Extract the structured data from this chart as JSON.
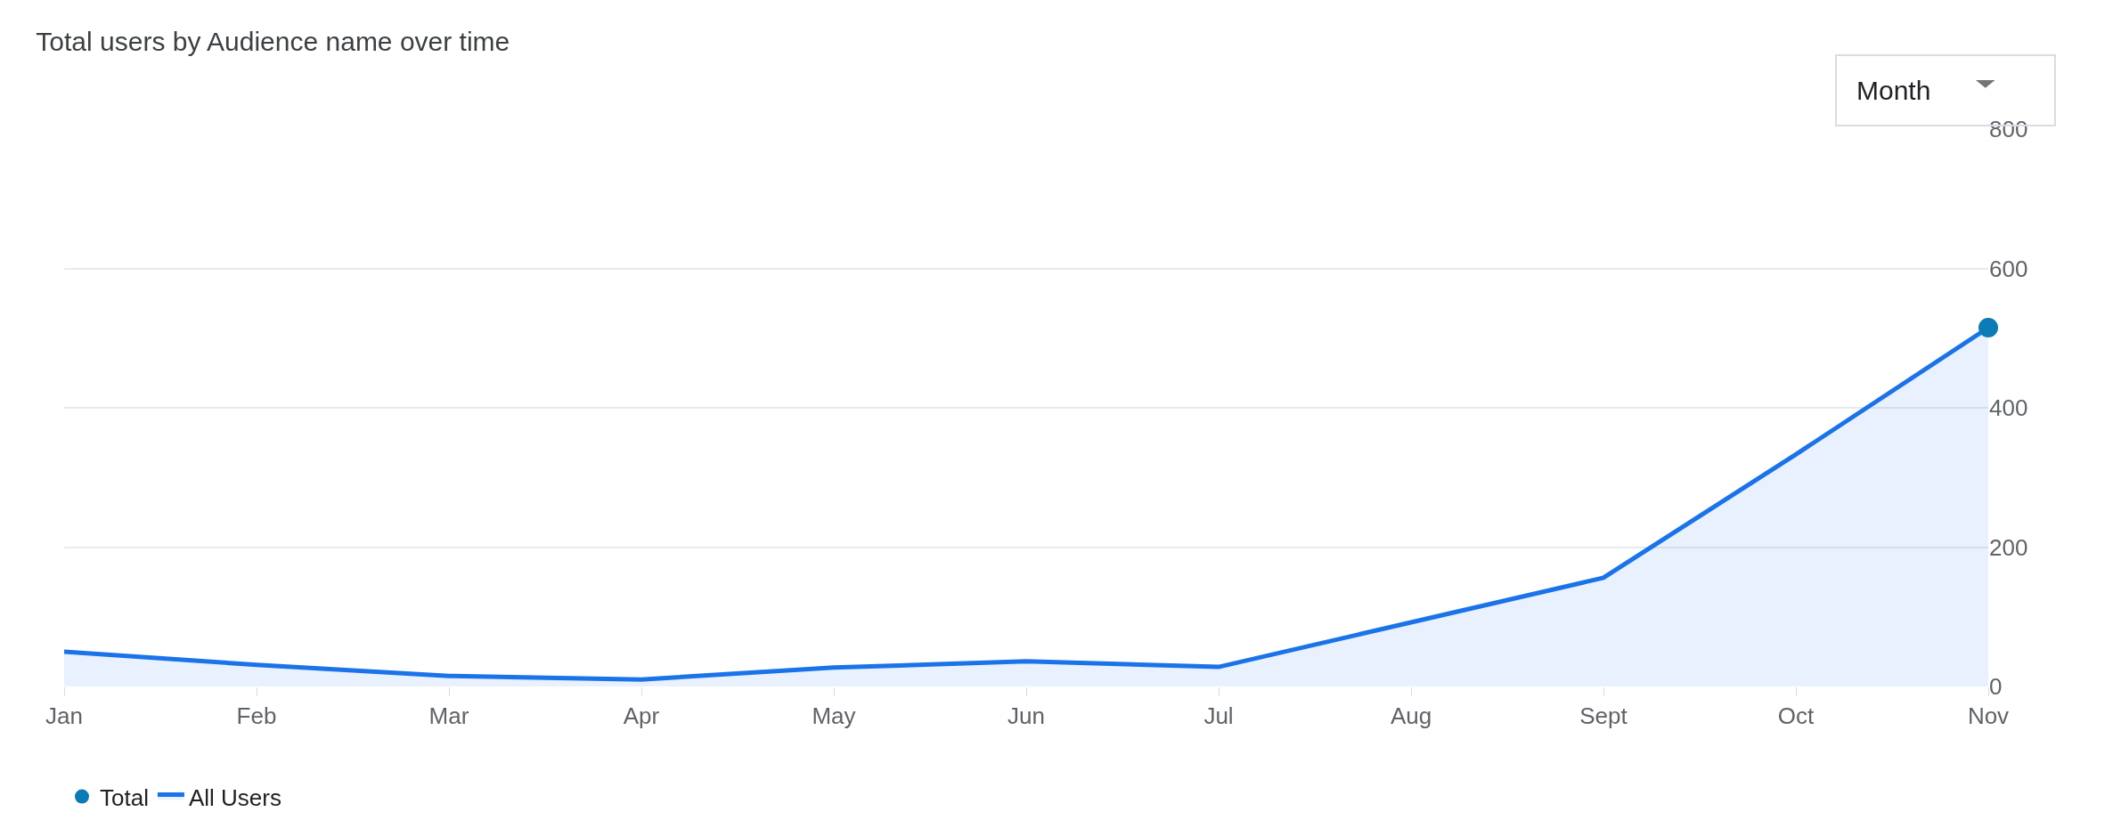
{
  "chart_data": {
    "type": "area",
    "title": "Total users by Audience name over time",
    "categories": [
      "Jan",
      "Feb",
      "Mar",
      "Apr",
      "May",
      "Jun",
      "Jul",
      "Aug",
      "Sept",
      "Oct",
      "Nov"
    ],
    "series": [
      {
        "name": "Total",
        "type": "scatter",
        "color": "#0b7bb5",
        "marker": "circle",
        "values": [
          null,
          null,
          null,
          null,
          null,
          null,
          null,
          null,
          null,
          null,
          515
        ]
      },
      {
        "name": "All Users",
        "color": "#1a73e8",
        "line_style": "solid",
        "values": [
          50,
          31,
          15,
          10,
          27,
          36,
          28,
          92,
          156,
          333,
          515
        ]
      }
    ],
    "ylim": [
      0,
      800
    ],
    "yticks": [
      0,
      200,
      400,
      600,
      800
    ],
    "grid": "y",
    "legend": "bottom left",
    "annotations": [
      "Month"
    ]
  }
}
